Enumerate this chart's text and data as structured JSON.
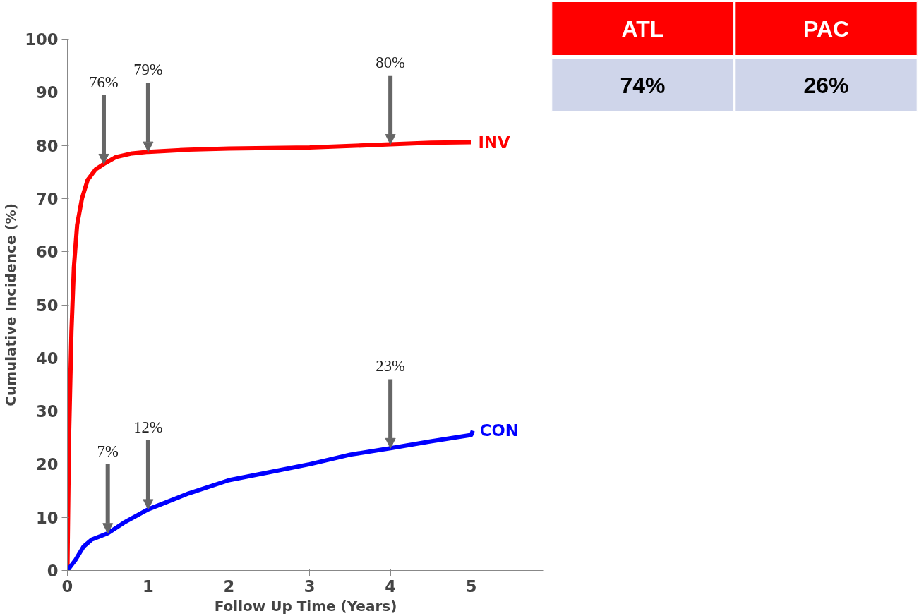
{
  "chart_data": [
    {
      "type": "line",
      "xlabel": "Follow Up Time (Years)",
      "ylabel": "Cumulative Incidence (%)",
      "xlim": [
        0,
        5.9
      ],
      "ylim": [
        0,
        100
      ],
      "xticks": [
        0,
        1,
        2,
        3,
        4,
        5
      ],
      "yticks": [
        0,
        10,
        20,
        30,
        40,
        50,
        60,
        70,
        80,
        90,
        100
      ],
      "grid": false,
      "marker": "none",
      "line_style": "solid",
      "series": [
        {
          "name": "INV",
          "color": "#ff0000",
          "x": [
            0,
            0.02,
            0.05,
            0.08,
            0.12,
            0.18,
            0.25,
            0.35,
            0.45,
            0.6,
            0.8,
            1,
            1.5,
            2,
            3,
            4,
            4.5,
            5
          ],
          "values": [
            0,
            25,
            45,
            57,
            65,
            70,
            73.5,
            75.5,
            76.5,
            77.8,
            78.5,
            78.8,
            79.2,
            79.4,
            79.6,
            80.2,
            80.5,
            80.6
          ]
        },
        {
          "name": "CON",
          "color": "#0000ff",
          "x": [
            0,
            0.1,
            0.2,
            0.3,
            0.5,
            0.7,
            1,
            1.5,
            2,
            2.5,
            3,
            3.5,
            4,
            4.5,
            5,
            5.02
          ],
          "values": [
            0,
            2,
            4.5,
            5.8,
            7,
            9,
            11.5,
            14.5,
            17,
            18.5,
            20,
            21.8,
            23,
            24.3,
            25.5,
            26.3
          ]
        }
      ],
      "annotations": [
        {
          "text": "76%",
          "x": 0.45,
          "y": 76.5
        },
        {
          "text": "79%",
          "x": 1,
          "y": 78.8
        },
        {
          "text": "80%",
          "x": 4,
          "y": 80.2
        },
        {
          "text": "7%",
          "x": 0.5,
          "y": 7
        },
        {
          "text": "12%",
          "x": 1,
          "y": 11.5
        },
        {
          "text": "23%",
          "x": 4,
          "y": 23
        }
      ]
    },
    {
      "type": "other",
      "categories": [
        "ATL",
        "PAC"
      ],
      "value_labels": [
        "74%",
        "26%"
      ]
    }
  ]
}
